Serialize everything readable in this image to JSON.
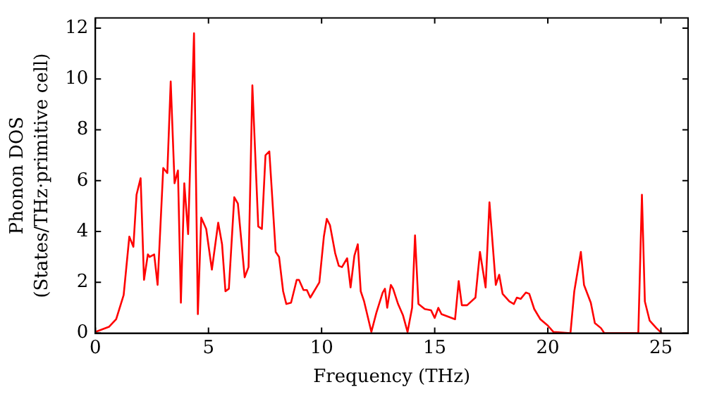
{
  "chart_data": {
    "type": "line",
    "xlabel": "Frequency (THz)",
    "ylabel": "Phonon DOS\n(States/THz·primitive cell)",
    "xlim": [
      0,
      26.2
    ],
    "ylim": [
      0,
      12.4
    ],
    "xticks": [
      0,
      5,
      10,
      15,
      20,
      25
    ],
    "yticks": [
      0,
      2,
      4,
      6,
      8,
      10,
      12
    ],
    "grid": false,
    "legend": false,
    "marker": "none",
    "line_style": "solid",
    "x": [
      0,
      0.6,
      0.92,
      1.25,
      1.5,
      1.68,
      1.82,
      2.0,
      2.15,
      2.32,
      2.4,
      2.6,
      2.75,
      3.0,
      3.18,
      3.33,
      3.5,
      3.65,
      3.78,
      3.93,
      4.1,
      4.36,
      4.53,
      4.68,
      4.9,
      5.15,
      5.43,
      5.6,
      5.75,
      5.9,
      6.14,
      6.3,
      6.6,
      6.77,
      6.94,
      7.2,
      7.36,
      7.52,
      7.69,
      7.97,
      8.12,
      8.3,
      8.44,
      8.65,
      8.9,
      9.0,
      9.2,
      9.35,
      9.5,
      9.9,
      10.1,
      10.23,
      10.37,
      10.6,
      10.76,
      10.9,
      11.13,
      11.28,
      11.45,
      11.6,
      11.73,
      11.88,
      12.2,
      12.42,
      12.7,
      12.8,
      12.9,
      13.06,
      13.16,
      13.38,
      13.6,
      13.8,
      14.0,
      14.13,
      14.28,
      14.56,
      14.84,
      15.0,
      15.16,
      15.3,
      15.9,
      16.06,
      16.2,
      16.43,
      16.8,
      17.0,
      17.25,
      17.42,
      17.7,
      17.85,
      18.0,
      18.3,
      18.5,
      18.63,
      18.8,
      19.03,
      19.18,
      19.4,
      19.67,
      20.0,
      20.25,
      21.0,
      21.17,
      21.46,
      21.6,
      21.9,
      22.08,
      22.35,
      22.5,
      24.0,
      24.16,
      24.29,
      24.5,
      24.8,
      25.04
    ],
    "series": [
      {
        "color": "#ff0000",
        "values": [
          0.05,
          0.25,
          0.55,
          1.5,
          3.8,
          3.4,
          5.45,
          6.1,
          2.1,
          3.1,
          3.0,
          3.1,
          1.9,
          6.5,
          6.3,
          9.9,
          5.9,
          6.4,
          1.2,
          5.9,
          3.9,
          11.8,
          0.75,
          4.55,
          4.1,
          2.5,
          4.35,
          3.5,
          1.65,
          1.75,
          5.35,
          5.1,
          2.2,
          2.6,
          9.75,
          4.2,
          4.1,
          7.0,
          7.15,
          3.2,
          3.0,
          1.65,
          1.15,
          1.2,
          2.1,
          2.1,
          1.7,
          1.7,
          1.4,
          2.0,
          3.8,
          4.5,
          4.25,
          3.15,
          2.65,
          2.6,
          2.95,
          1.8,
          3.05,
          3.5,
          1.65,
          1.25,
          0.05,
          0.8,
          1.6,
          1.75,
          1.0,
          1.9,
          1.75,
          1.15,
          0.7,
          0.05,
          1.0,
          3.85,
          1.15,
          0.95,
          0.9,
          0.6,
          1.0,
          0.75,
          0.55,
          2.05,
          1.1,
          1.1,
          1.4,
          3.2,
          1.8,
          5.15,
          1.9,
          2.3,
          1.55,
          1.25,
          1.15,
          1.4,
          1.35,
          1.6,
          1.55,
          0.95,
          0.55,
          0.3,
          0.05,
          0,
          1.65,
          3.2,
          1.9,
          1.2,
          0.4,
          0.2,
          0,
          0,
          5.45,
          1.25,
          0.5,
          0.2,
          0
        ]
      }
    ]
  }
}
